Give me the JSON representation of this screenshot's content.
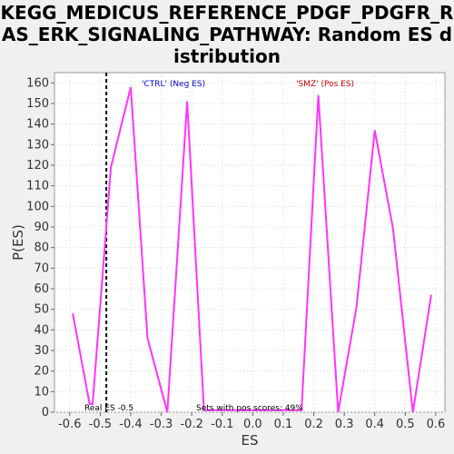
{
  "chart_data": {
    "type": "line",
    "title": "KEGG_MEDICUS_REFERENCE_PDGF_PDGFR_RAS_ERK_SIGNALING_PATHWAY: Random ES distribution",
    "xlabel": "ES",
    "ylabel": "P(ES)",
    "xlim": [
      -0.65,
      0.63
    ],
    "ylim": [
      0,
      165
    ],
    "xticks": [
      -0.6,
      -0.5,
      -0.4,
      -0.3,
      -0.2,
      -0.1,
      0.0,
      0.1,
      0.2,
      0.3,
      0.4,
      0.5,
      0.6
    ],
    "xtick_labels": [
      "-0.6",
      "-0.5",
      "-0.4",
      "-0.3",
      "-0.2",
      "-0.1",
      "0.0",
      "0.1",
      "0.2",
      "0.3",
      "0.4",
      "0.5",
      "0.6"
    ],
    "yticks": [
      0,
      10,
      20,
      30,
      40,
      50,
      60,
      70,
      80,
      90,
      100,
      110,
      120,
      130,
      140,
      150,
      160
    ],
    "grid": true,
    "series": [
      {
        "color": "#ff33ff",
        "x": [
          -0.59,
          -0.535,
          -0.525,
          -0.465,
          -0.4,
          -0.345,
          -0.28,
          -0.215,
          -0.16,
          0.16,
          0.215,
          0.28,
          0.34,
          0.4,
          0.46,
          0.525,
          0.585
        ],
        "y": [
          48,
          4,
          4,
          119,
          158,
          36,
          0,
          151,
          1,
          1,
          154,
          0,
          51,
          137,
          89,
          0,
          57
        ]
      }
    ],
    "real_es": -0.48,
    "annotations": {
      "neg_label": "'CTRL' (Neg ES)",
      "pos_label": "'SMZ' (Pos ES)",
      "real_es_label": "Real ES -0.5",
      "pos_scores_label": "Sets with pos scores: 49%"
    },
    "colors": {
      "line": "#ff33ff",
      "neg_label": "#0000cc",
      "pos_label": "#cc0000",
      "grid": "#e6e6e6",
      "plot_bg": "#ffffff"
    }
  }
}
